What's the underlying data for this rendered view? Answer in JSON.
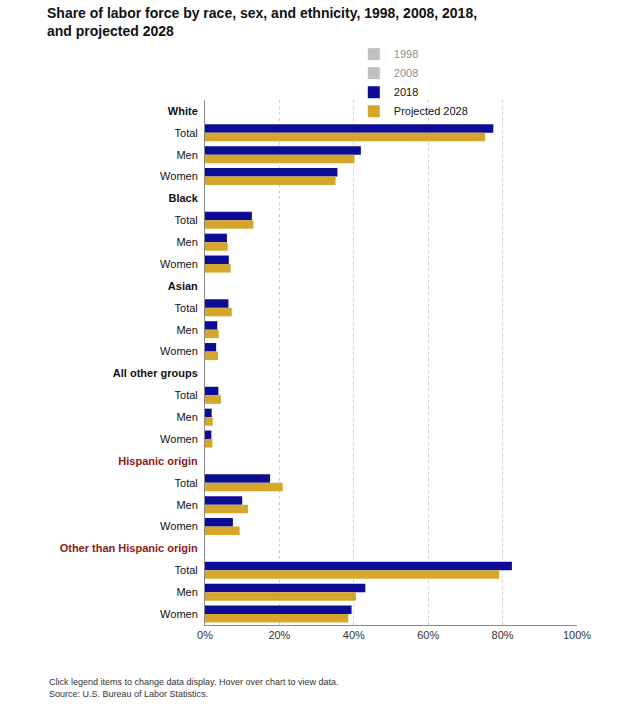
{
  "chart_data": {
    "type": "bar",
    "title": "Share of labor force by race, sex, and ethnicity, 1998, 2008, 2018, and projected 2028",
    "orientation": "horizontal",
    "categories": [
      "White",
      "Total",
      "Men",
      "Women",
      "Black",
      "Total",
      "Men",
      "Women",
      "Asian",
      "Total",
      "Men",
      "Women",
      "All other groups",
      "Total",
      "Men",
      "Women",
      "Hispanic origin",
      "Total",
      "Men",
      "Women",
      "Other than Hispanic origin",
      "Total",
      "Men",
      "Women"
    ],
    "series": [
      {
        "name": "1998",
        "color": "#808080",
        "values": [
          null,
          null,
          null,
          null,
          null,
          null,
          null,
          null,
          null,
          null,
          null,
          null,
          null,
          null,
          null,
          null,
          null,
          null,
          null,
          null,
          null,
          null,
          null,
          null
        ]
      },
      {
        "name": "2008",
        "color": "#808080",
        "values": [
          null,
          null,
          null,
          null,
          null,
          null,
          null,
          null,
          null,
          null,
          null,
          null,
          null,
          null,
          null,
          null,
          null,
          null,
          null,
          null,
          null,
          null,
          null,
          null
        ]
      },
      {
        "name": "2018",
        "color": "#0c0c96",
        "values": [
          null,
          77.5,
          41.9,
          35.6,
          null,
          12.6,
          5.9,
          6.4,
          null,
          6.3,
          3.3,
          3.0,
          null,
          3.6,
          1.8,
          1.7,
          null,
          17.5,
          10.0,
          7.5,
          null,
          82.5,
          43.1,
          39.4
        ]
      },
      {
        "name": "Projected 2028",
        "color": "#d4a72c",
        "values": [
          null,
          75.3,
          40.2,
          35.1,
          null,
          13.0,
          6.1,
          6.9,
          null,
          7.2,
          3.7,
          3.5,
          null,
          4.3,
          2.1,
          2.0,
          null,
          20.9,
          11.6,
          9.3,
          null,
          79.1,
          40.6,
          38.5
        ]
      }
    ],
    "xlim": [
      0,
      100
    ],
    "xticks": [
      {
        "value": 0,
        "label": "0%"
      },
      {
        "value": 20,
        "label": "20%"
      },
      {
        "value": 40,
        "label": "40%"
      },
      {
        "value": 60,
        "label": "60%"
      },
      {
        "value": 80,
        "label": "80%"
      },
      {
        "value": 100,
        "label": "100%"
      }
    ],
    "grid": true,
    "legend": "top",
    "annotations": [
      "Click legend items to change data display. Hover over chart to view data.",
      "Source: U.S. Bureau of Labor Statistics."
    ]
  }
}
